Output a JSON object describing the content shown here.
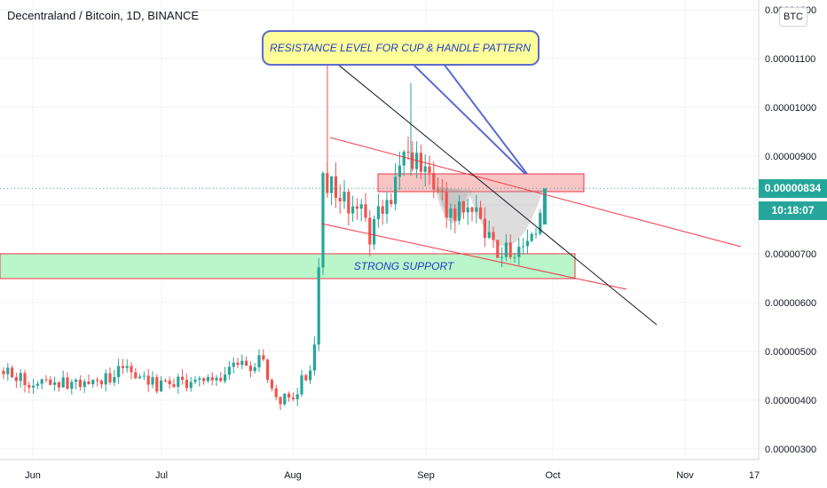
{
  "header": {
    "title": "Decentraland / Bitcoin, 1D, BINANCE"
  },
  "price_axis": {
    "currency_badge": "BTC"
  },
  "last_price": {
    "value": "0.00000834",
    "countdown": "10:18:07",
    "color": "#26a69a"
  },
  "annotations": {
    "resistance_callout": "RESISTANCE LEVEL FOR CUP & HANDLE PATTERN",
    "support_label": "STRONG SUPPORT"
  },
  "colors": {
    "up": "#26a69a",
    "down": "#ef5350",
    "support_zone": "#b9f6ca",
    "resistance_zone": "#f8c5c5",
    "trendline_red": "#f23645",
    "trendline_black": "#131722",
    "callout_bg": "#ffff99",
    "callout_border": "#5b6ccd",
    "cup_fill": "#9e9e9e"
  },
  "chart_data": {
    "type": "candlestick",
    "title": "Decentraland / Bitcoin, 1D, BINANCE",
    "x_ticks": [
      "Jun",
      "Jul",
      "Aug",
      "Sep",
      "Oct",
      "Nov",
      "17"
    ],
    "y_ticks": [
      "0.00001200",
      "0.00001100",
      "0.00001000",
      "0.00000900",
      "0.00000800",
      "0.00000700",
      "0.00000600",
      "0.00000500",
      "0.00000400",
      "0.00000300"
    ],
    "ylim": [
      2.9e-06,
      1.22e-05
    ],
    "last_price": 8.34e-06,
    "annotations": [
      "RESISTANCE LEVEL FOR CUP & HANDLE PATTERN",
      "STRONG SUPPORT"
    ],
    "ohlc_approx": [
      {
        "period": "late May",
        "range": [
          4e-06,
          5e-06
        ]
      },
      {
        "period": "Jun",
        "range": [
          4e-06,
          4.9e-06
        ]
      },
      {
        "period": "Jul",
        "range": [
          3.9e-06,
          4.9e-06
        ]
      },
      {
        "period": "late Jul",
        "range": [
          3.6e-06,
          6e-06
        ]
      },
      {
        "period": "early Aug",
        "open": 4.5e-06,
        "close": 8.8e-06,
        "high": 1.12e-05
      },
      {
        "period": "Aug",
        "range": [
          7e-06,
          9e-06
        ]
      },
      {
        "period": "late Aug",
        "range": [
          7.6e-06,
          1.06e-05
        ]
      },
      {
        "period": "Sep",
        "range": [
          6.8e-06,
          8.6e-06
        ]
      },
      {
        "period": "late Sep",
        "range": [
          6.4e-06,
          8.5e-06
        ]
      }
    ]
  }
}
